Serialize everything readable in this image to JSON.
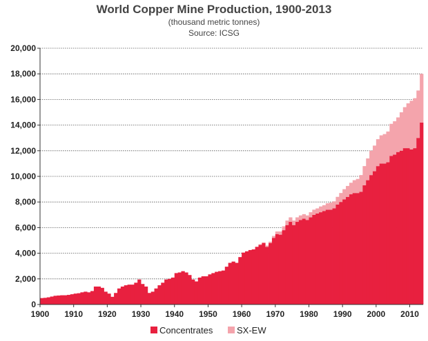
{
  "chart_data": {
    "type": "area",
    "title": "World Copper Mine Production, 1900-2013",
    "subtitle": "(thousand metric tonnes)",
    "source": "Source: ICSG",
    "xlabel": "",
    "ylabel": "",
    "xlim": [
      1900,
      2014
    ],
    "ylim": [
      0,
      20000
    ],
    "x_ticks": [
      "1900",
      "1910",
      "1920",
      "1930",
      "1940",
      "1950",
      "1960",
      "1970",
      "1980",
      "1990",
      "2000",
      "2010"
    ],
    "y_ticks": [
      "0",
      "2,000",
      "4,000",
      "6,000",
      "8,000",
      "10,000",
      "12,000",
      "14,000",
      "16,000",
      "18,000",
      "20,000"
    ],
    "grid": "horizontal dotted",
    "legend_position": "bottom",
    "stacked": true,
    "x": [
      1900,
      1901,
      1902,
      1903,
      1904,
      1905,
      1906,
      1907,
      1908,
      1909,
      1910,
      1911,
      1912,
      1913,
      1914,
      1915,
      1916,
      1917,
      1918,
      1919,
      1920,
      1921,
      1922,
      1923,
      1924,
      1925,
      1926,
      1927,
      1928,
      1929,
      1930,
      1931,
      1932,
      1933,
      1934,
      1935,
      1936,
      1937,
      1938,
      1939,
      1940,
      1941,
      1942,
      1943,
      1944,
      1945,
      1946,
      1947,
      1948,
      1949,
      1950,
      1951,
      1952,
      1953,
      1954,
      1955,
      1956,
      1957,
      1958,
      1959,
      1960,
      1961,
      1962,
      1963,
      1964,
      1965,
      1966,
      1967,
      1968,
      1969,
      1970,
      1971,
      1972,
      1973,
      1974,
      1975,
      1976,
      1977,
      1978,
      1979,
      1980,
      1981,
      1982,
      1983,
      1984,
      1985,
      1986,
      1987,
      1988,
      1989,
      1990,
      1991,
      1992,
      1993,
      1994,
      1995,
      1996,
      1997,
      1998,
      1999,
      2000,
      2001,
      2002,
      2003,
      2004,
      2005,
      2006,
      2007,
      2008,
      2009,
      2010,
      2011,
      2012,
      2013
    ],
    "series": [
      {
        "name": "Concentrates",
        "color": "#e8203f",
        "values": [
          500,
          520,
          560,
          620,
          680,
          700,
          720,
          720,
          750,
          800,
          850,
          880,
          950,
          1000,
          950,
          1050,
          1400,
          1400,
          1300,
          1000,
          850,
          600,
          900,
          1250,
          1400,
          1500,
          1550,
          1550,
          1700,
          1950,
          1600,
          1400,
          900,
          1000,
          1250,
          1500,
          1700,
          1950,
          2000,
          2100,
          2450,
          2500,
          2600,
          2500,
          2300,
          1950,
          1800,
          2100,
          2200,
          2200,
          2350,
          2450,
          2550,
          2600,
          2650,
          2950,
          3250,
          3350,
          3250,
          3700,
          4050,
          4150,
          4250,
          4300,
          4500,
          4650,
          4800,
          4500,
          4800,
          5200,
          5500,
          5450,
          5800,
          6200,
          6450,
          6200,
          6450,
          6600,
          6700,
          6600,
          6800,
          7000,
          7100,
          7200,
          7300,
          7400,
          7400,
          7500,
          7800,
          8000,
          8200,
          8400,
          8600,
          8700,
          8700,
          8800,
          9300,
          9700,
          10100,
          10400,
          10800,
          11000,
          11000,
          11100,
          11600,
          11700,
          11900,
          12000,
          12200,
          12200,
          12100,
          12200,
          13000,
          14200
        ]
      },
      {
        "name": "SX-EW",
        "color": "#f4a4ac",
        "values": [
          0,
          0,
          0,
          0,
          0,
          0,
          0,
          0,
          0,
          0,
          0,
          0,
          0,
          0,
          0,
          0,
          0,
          0,
          0,
          0,
          0,
          0,
          0,
          0,
          0,
          0,
          0,
          0,
          0,
          0,
          0,
          0,
          0,
          0,
          0,
          0,
          0,
          0,
          0,
          0,
          0,
          0,
          0,
          0,
          0,
          0,
          0,
          0,
          0,
          0,
          0,
          0,
          0,
          0,
          0,
          0,
          0,
          0,
          0,
          0,
          0,
          0,
          0,
          0,
          0,
          50,
          50,
          100,
          100,
          150,
          200,
          250,
          300,
          350,
          350,
          350,
          350,
          350,
          350,
          350,
          400,
          400,
          400,
          450,
          450,
          500,
          550,
          550,
          600,
          700,
          800,
          850,
          900,
          1000,
          1100,
          1300,
          1500,
          1700,
          1900,
          2000,
          2100,
          2200,
          2300,
          2400,
          2500,
          2600,
          2700,
          3000,
          3200,
          3500,
          3800,
          3900,
          3700,
          3800
        ]
      }
    ]
  }
}
